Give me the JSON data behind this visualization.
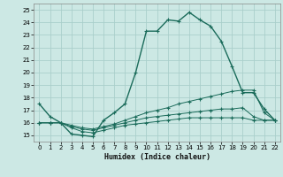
{
  "xlabel": "Humidex (Indice chaleur)",
  "background_color": "#cce8e4",
  "grid_color": "#aacfcb",
  "line_color": "#1a6b5a",
  "xlim": [
    -0.5,
    22.5
  ],
  "ylim": [
    14.5,
    25.5
  ],
  "xticks": [
    0,
    1,
    2,
    3,
    4,
    5,
    6,
    7,
    8,
    9,
    10,
    11,
    12,
    13,
    14,
    15,
    16,
    17,
    18,
    19,
    20,
    21,
    22
  ],
  "yticks": [
    15,
    16,
    17,
    18,
    19,
    20,
    21,
    22,
    23,
    24,
    25
  ],
  "series": [
    {
      "x": [
        0,
        1,
        2,
        3,
        4,
        5,
        6,
        7,
        8,
        9,
        10,
        11,
        12,
        13,
        14,
        15,
        16,
        17,
        18,
        19,
        20,
        21,
        22
      ],
      "y": [
        17.5,
        16.5,
        16.0,
        15.1,
        15.0,
        14.9,
        16.2,
        16.8,
        17.5,
        20.0,
        23.3,
        23.3,
        24.2,
        24.1,
        24.8,
        24.2,
        23.7,
        22.5,
        20.5,
        18.4,
        18.4,
        17.1,
        16.2
      ]
    },
    {
      "x": [
        0,
        1,
        2,
        3,
        4,
        5,
        6,
        7,
        8,
        9,
        10,
        11,
        12,
        13,
        14,
        15,
        16,
        17,
        18,
        19,
        20,
        21,
        22
      ],
      "y": [
        16.0,
        16.0,
        16.0,
        15.8,
        15.6,
        15.5,
        15.7,
        15.9,
        16.2,
        16.5,
        16.8,
        17.0,
        17.2,
        17.5,
        17.7,
        17.9,
        18.1,
        18.3,
        18.5,
        18.6,
        18.6,
        16.8,
        16.2
      ]
    },
    {
      "x": [
        0,
        1,
        2,
        3,
        4,
        5,
        6,
        7,
        8,
        9,
        10,
        11,
        12,
        13,
        14,
        15,
        16,
        17,
        18,
        19,
        20,
        21,
        22
      ],
      "y": [
        16.0,
        16.0,
        16.0,
        15.7,
        15.5,
        15.4,
        15.6,
        15.8,
        16.0,
        16.2,
        16.4,
        16.5,
        16.6,
        16.7,
        16.8,
        16.9,
        17.0,
        17.1,
        17.1,
        17.2,
        16.5,
        16.2,
        16.2
      ]
    },
    {
      "x": [
        0,
        1,
        2,
        3,
        4,
        5,
        6,
        7,
        8,
        9,
        10,
        11,
        12,
        13,
        14,
        15,
        16,
        17,
        18,
        19,
        20,
        21,
        22
      ],
      "y": [
        16.0,
        16.0,
        16.0,
        15.6,
        15.3,
        15.2,
        15.4,
        15.6,
        15.8,
        15.9,
        16.0,
        16.1,
        16.2,
        16.3,
        16.4,
        16.4,
        16.4,
        16.4,
        16.4,
        16.4,
        16.2,
        16.2,
        16.2
      ]
    }
  ]
}
